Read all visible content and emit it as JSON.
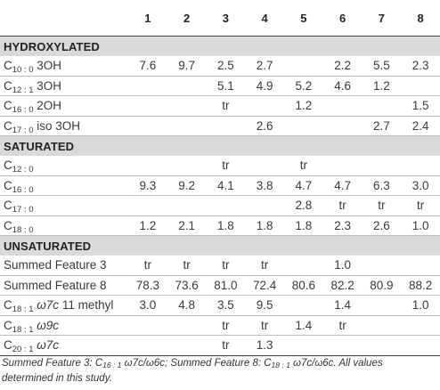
{
  "columns": [
    "1",
    "2",
    "3",
    "4",
    "5",
    "6",
    "7",
    "8"
  ],
  "sections": [
    {
      "title": "HYDROXYLATED",
      "rows": [
        {
          "base": "C",
          "sub": "10 : 0",
          "rest": " 3OH",
          "rest_italic": "",
          "values": [
            "7.6",
            "9.7",
            "2.5",
            "2.7",
            "",
            "2.2",
            "5.5",
            "2.3"
          ]
        },
        {
          "base": "C",
          "sub": "12 : 1",
          "rest": " 3OH",
          "rest_italic": "",
          "values": [
            "",
            "",
            "5.1",
            "4.9",
            "5.2",
            "4.6",
            "1.2",
            ""
          ]
        },
        {
          "base": "C",
          "sub": "16 : 0",
          "rest": " 2OH",
          "rest_italic": "",
          "values": [
            "",
            "",
            "tr",
            "",
            "1.2",
            "",
            "",
            "1.5"
          ]
        },
        {
          "base": "C",
          "sub": "17 : 0",
          "rest": " iso 3OH",
          "rest_italic": "",
          "values": [
            "",
            "",
            "",
            "2.6",
            "",
            "",
            "2.7",
            "2.4"
          ]
        }
      ]
    },
    {
      "title": "SATURATED",
      "rows": [
        {
          "base": "C",
          "sub": "12 : 0",
          "rest": "",
          "rest_italic": "",
          "values": [
            "",
            "",
            "tr",
            "",
            "tr",
            "",
            "",
            ""
          ]
        },
        {
          "base": "C",
          "sub": "16 : 0",
          "rest": "",
          "rest_italic": "",
          "values": [
            "9.3",
            "9.2",
            "4.1",
            "3.8",
            "4.7",
            "4.7",
            "6.3",
            "3.0"
          ]
        },
        {
          "base": "C",
          "sub": "17 : 0",
          "rest": "",
          "rest_italic": "",
          "values": [
            "",
            "",
            "",
            "",
            "2.8",
            "tr",
            "tr",
            "tr"
          ]
        },
        {
          "base": "C",
          "sub": "18 : 0",
          "rest": "",
          "rest_italic": "",
          "values": [
            "1.2",
            "2.1",
            "1.8",
            "1.8",
            "1.8",
            "2.3",
            "2.6",
            "1.0"
          ]
        }
      ]
    },
    {
      "title": "UNSATURATED",
      "rows": [
        {
          "base": "Summed Feature 3",
          "sub": "",
          "rest": "",
          "rest_italic": "",
          "values": [
            "tr",
            "tr",
            "tr",
            "tr",
            "",
            "1.0",
            "",
            ""
          ]
        },
        {
          "base": "Summed Feature 8",
          "sub": "",
          "rest": "",
          "rest_italic": "",
          "values": [
            "78.3",
            "73.6",
            "81.0",
            "72.4",
            "80.6",
            "82.2",
            "80.9",
            "88.2"
          ]
        },
        {
          "base": "C",
          "sub": "18 : 1",
          "rest": " 11 methyl",
          "rest_italic": " ω7c",
          "values": [
            "3.0",
            "4.8",
            "3.5",
            "9.5",
            "",
            "1.4",
            "",
            "1.0"
          ]
        },
        {
          "base": "C",
          "sub": "18 : 1",
          "rest": "",
          "rest_italic": " ω9c",
          "values": [
            "",
            "",
            "tr",
            "tr",
            "1.4",
            "tr",
            "",
            ""
          ]
        },
        {
          "base": "C",
          "sub": "20 : 1",
          "rest": "",
          "rest_italic": " ω7c",
          "values": [
            "",
            "",
            "tr",
            "1.3",
            "",
            "",
            "",
            ""
          ]
        }
      ]
    }
  ],
  "footnote": {
    "part1": "Summed Feature 3: C",
    "sub1": "16 : 1",
    "part2": " ω7c/ω6c; Summed Feature 8: C",
    "sub2": "18 : 1",
    "part3": " ω7c/ω6c. All values determined in this study."
  }
}
